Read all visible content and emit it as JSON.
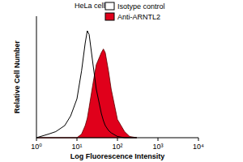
{
  "chart_data": {
    "type": "area",
    "title": "HeLa cells",
    "x_label": "Log Fluorescence Intensity",
    "y_label": "Relative Cell Number",
    "x": [
      1,
      2,
      3,
      5,
      7,
      10,
      13,
      16,
      18,
      20,
      25,
      30,
      40,
      45,
      50,
      60,
      70,
      100,
      150,
      200,
      300
    ],
    "series": [
      {
        "name": "Isotype control",
        "type": "line",
        "color": "#000000",
        "values": [
          0,
          3,
          5,
          10,
          18,
          32,
          55,
          78,
          88,
          85,
          60,
          40,
          20,
          14,
          10,
          6,
          4,
          1,
          0,
          0,
          0
        ]
      },
      {
        "name": "Anti-ARNTL2",
        "type": "area",
        "color": "#e0001b",
        "values": [
          0,
          0,
          0,
          0,
          0,
          0,
          3,
          10,
          16,
          25,
          45,
          60,
          70,
          73,
          70,
          55,
          40,
          15,
          5,
          1,
          0
        ]
      }
    ],
    "log": "x",
    "xlim": [
      1,
      10000
    ],
    "xticks": [
      {
        "value": 1,
        "label": "10⁰"
      },
      {
        "value": 10,
        "label": "10¹"
      },
      {
        "value": 100,
        "label": "10²"
      },
      {
        "value": 1000,
        "label": "10³"
      },
      {
        "value": 10000,
        "label": "10⁴"
      }
    ],
    "ylim": [
      0,
      100
    ],
    "yticks": [],
    "tick_labels": "x",
    "grid": false,
    "legend": "top-right"
  }
}
